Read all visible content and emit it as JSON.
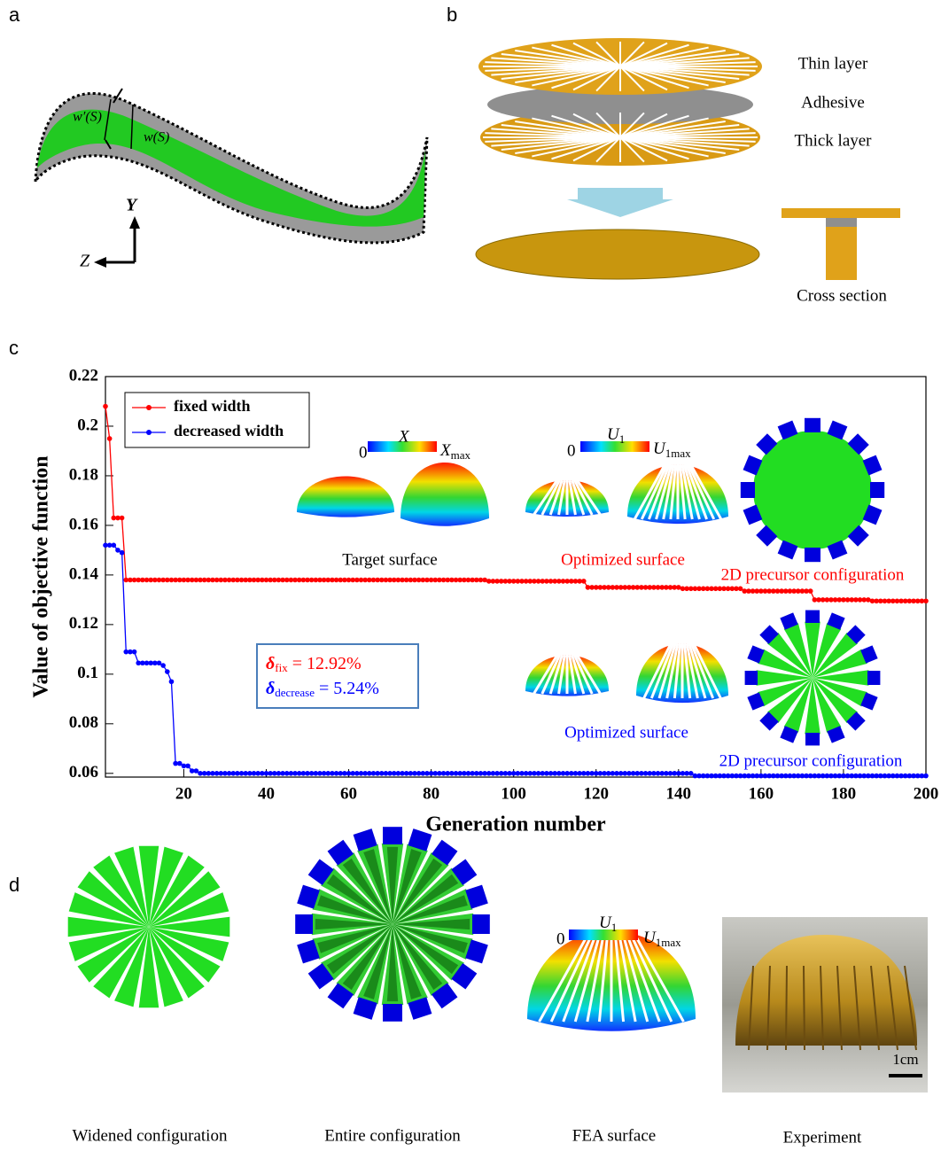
{
  "panel_labels": {
    "a": "a",
    "b": "b",
    "c": "c",
    "d": "d"
  },
  "panel_a": {
    "w_inner": "w′(S)",
    "w_outer": "w(S)",
    "axis_y": "Y",
    "axis_z": "Z"
  },
  "panel_b": {
    "thin": "Thin layer",
    "adhesive": "Adhesive",
    "thick": "Thick layer",
    "cross": "Cross section"
  },
  "panel_d": {
    "widened": "Widened configuration",
    "entire": "Entire configuration",
    "fea": "FEA surface",
    "experiment": "Experiment",
    "scale": "1cm",
    "colorbar": {
      "min": "0",
      "label": "U",
      "label_sub": "1",
      "max": "U",
      "max_sub": "1max"
    }
  },
  "chart_data": {
    "type": "line",
    "xlabel": "Generation number",
    "ylabel": "Value of objective function",
    "xlim": [
      1,
      200
    ],
    "ylim": [
      0.0585,
      0.22
    ],
    "xticks": [
      20,
      40,
      60,
      80,
      100,
      120,
      140,
      160,
      180,
      200
    ],
    "yticks": [
      0.06,
      0.08,
      0.1,
      0.12,
      0.14,
      0.16,
      0.18,
      0.2,
      0.22
    ],
    "legend": "upper left",
    "annotations": {
      "target": "Target surface",
      "opt_fixed": "Optimized surface",
      "pre_fixed": "2D precursor configuration",
      "opt_decreased": "Optimized surface",
      "pre_decreased": "2D precursor configuration",
      "cb_x": {
        "min": "0",
        "label": "X",
        "max": "X",
        "max_sub": "max"
      },
      "cb_u": {
        "min": "0",
        "label": "U",
        "label_sub": "1",
        "max": "U",
        "max_sub": "1max"
      },
      "delta_fix": {
        "sym": "δ",
        "sub": "fix",
        "rest": " = 12.92%"
      },
      "delta_dec": {
        "sym": "δ",
        "sub": "decrease",
        "rest": " = 5.24%"
      }
    },
    "x": [
      1,
      2,
      3,
      4,
      5,
      6,
      7,
      8,
      9,
      10,
      11,
      12,
      13,
      14,
      15,
      16,
      17,
      18,
      19,
      20,
      21,
      22,
      23,
      24,
      25,
      26,
      27,
      28,
      29,
      30,
      31,
      32,
      33,
      34,
      35,
      36,
      37,
      38,
      39,
      40,
      41,
      42,
      43,
      44,
      45,
      46,
      47,
      48,
      49,
      50,
      51,
      52,
      53,
      54,
      55,
      56,
      57,
      58,
      59,
      60,
      61,
      62,
      63,
      64,
      65,
      66,
      67,
      68,
      69,
      70,
      71,
      72,
      73,
      74,
      75,
      76,
      77,
      78,
      79,
      80,
      81,
      82,
      83,
      84,
      85,
      86,
      87,
      88,
      89,
      90,
      91,
      92,
      93,
      94,
      95,
      96,
      97,
      98,
      99,
      100,
      101,
      102,
      103,
      104,
      105,
      106,
      107,
      108,
      109,
      110,
      111,
      112,
      113,
      114,
      115,
      116,
      117,
      118,
      119,
      120,
      121,
      122,
      123,
      124,
      125,
      126,
      127,
      128,
      129,
      130,
      131,
      132,
      133,
      134,
      135,
      136,
      137,
      138,
      139,
      140,
      141,
      142,
      143,
      144,
      145,
      146,
      147,
      148,
      149,
      150,
      151,
      152,
      153,
      154,
      155,
      156,
      157,
      158,
      159,
      160,
      161,
      162,
      163,
      164,
      165,
      166,
      167,
      168,
      169,
      170,
      171,
      172,
      173,
      174,
      175,
      176,
      177,
      178,
      179,
      180,
      181,
      182,
      183,
      184,
      185,
      186,
      187,
      188,
      189,
      190,
      191,
      192,
      193,
      194,
      195,
      196,
      197,
      198,
      199,
      200
    ],
    "series": [
      {
        "name": "fixed width",
        "color": "#ff0000",
        "values": [
          0.208,
          0.195,
          0.163,
          0.163,
          0.163,
          0.138,
          0.138,
          0.138,
          0.138,
          0.138,
          0.138,
          0.138,
          0.138,
          0.138,
          0.138,
          0.138,
          0.138,
          0.138,
          0.138,
          0.138,
          0.138,
          0.138,
          0.138,
          0.138,
          0.138,
          0.138,
          0.138,
          0.138,
          0.138,
          0.138,
          0.138,
          0.138,
          0.138,
          0.138,
          0.138,
          0.138,
          0.138,
          0.138,
          0.138,
          0.138,
          0.138,
          0.138,
          0.138,
          0.138,
          0.138,
          0.138,
          0.138,
          0.138,
          0.138,
          0.138,
          0.138,
          0.138,
          0.138,
          0.138,
          0.138,
          0.138,
          0.138,
          0.138,
          0.138,
          0.138,
          0.138,
          0.138,
          0.138,
          0.138,
          0.138,
          0.138,
          0.138,
          0.138,
          0.138,
          0.138,
          0.138,
          0.138,
          0.138,
          0.138,
          0.138,
          0.138,
          0.138,
          0.138,
          0.138,
          0.138,
          0.138,
          0.138,
          0.138,
          0.138,
          0.138,
          0.138,
          0.138,
          0.138,
          0.138,
          0.138,
          0.138,
          0.138,
          0.138,
          0.1375,
          0.1375,
          0.1375,
          0.1375,
          0.1375,
          0.1375,
          0.1375,
          0.1375,
          0.1375,
          0.1375,
          0.1375,
          0.1375,
          0.1375,
          0.1375,
          0.1375,
          0.1375,
          0.1375,
          0.1375,
          0.1375,
          0.1375,
          0.1375,
          0.1375,
          0.1375,
          0.1375,
          0.135,
          0.135,
          0.135,
          0.135,
          0.135,
          0.135,
          0.135,
          0.135,
          0.135,
          0.135,
          0.135,
          0.135,
          0.135,
          0.135,
          0.135,
          0.135,
          0.135,
          0.135,
          0.135,
          0.135,
          0.135,
          0.135,
          0.135,
          0.1345,
          0.1345,
          0.1345,
          0.1345,
          0.1345,
          0.1345,
          0.1345,
          0.1345,
          0.1345,
          0.1345,
          0.1345,
          0.1345,
          0.1345,
          0.1345,
          0.1345,
          0.1335,
          0.1335,
          0.1335,
          0.1335,
          0.1335,
          0.1335,
          0.1335,
          0.1335,
          0.1335,
          0.1335,
          0.1335,
          0.1335,
          0.1335,
          0.1335,
          0.1335,
          0.1335,
          0.1335,
          0.13,
          0.13,
          0.13,
          0.13,
          0.13,
          0.13,
          0.13,
          0.13,
          0.13,
          0.13,
          0.13,
          0.13,
          0.13,
          0.13,
          0.1295,
          0.1295,
          0.1295,
          0.1295,
          0.1295,
          0.1295,
          0.1295,
          0.1295,
          0.1295,
          0.1295,
          0.1295,
          0.1295,
          0.1295,
          0.1295
        ]
      },
      {
        "name": "decreased width",
        "color": "#0000ff",
        "values": [
          0.152,
          0.152,
          0.152,
          0.15,
          0.149,
          0.109,
          0.109,
          0.109,
          0.1045,
          0.1045,
          0.1045,
          0.1045,
          0.1045,
          0.1045,
          0.1035,
          0.101,
          0.097,
          0.064,
          0.064,
          0.063,
          0.063,
          0.061,
          0.061,
          0.06,
          0.06,
          0.06,
          0.06,
          0.06,
          0.06,
          0.06,
          0.06,
          0.06,
          0.06,
          0.06,
          0.06,
          0.06,
          0.06,
          0.06,
          0.06,
          0.06,
          0.06,
          0.06,
          0.06,
          0.06,
          0.06,
          0.06,
          0.06,
          0.06,
          0.06,
          0.06,
          0.06,
          0.06,
          0.06,
          0.06,
          0.06,
          0.06,
          0.06,
          0.06,
          0.06,
          0.06,
          0.06,
          0.06,
          0.06,
          0.06,
          0.06,
          0.06,
          0.06,
          0.06,
          0.06,
          0.06,
          0.06,
          0.06,
          0.06,
          0.06,
          0.06,
          0.06,
          0.06,
          0.06,
          0.06,
          0.06,
          0.06,
          0.06,
          0.06,
          0.06,
          0.06,
          0.06,
          0.06,
          0.06,
          0.06,
          0.06,
          0.06,
          0.06,
          0.06,
          0.06,
          0.06,
          0.06,
          0.06,
          0.06,
          0.06,
          0.06,
          0.06,
          0.06,
          0.06,
          0.06,
          0.06,
          0.06,
          0.06,
          0.06,
          0.06,
          0.06,
          0.06,
          0.06,
          0.06,
          0.06,
          0.06,
          0.06,
          0.06,
          0.06,
          0.06,
          0.06,
          0.06,
          0.06,
          0.06,
          0.06,
          0.06,
          0.06,
          0.06,
          0.06,
          0.06,
          0.06,
          0.06,
          0.06,
          0.06,
          0.06,
          0.06,
          0.06,
          0.06,
          0.06,
          0.06,
          0.06,
          0.06,
          0.06,
          0.06,
          0.059,
          0.059,
          0.059,
          0.059,
          0.059,
          0.059,
          0.059,
          0.059,
          0.059,
          0.059,
          0.059,
          0.059,
          0.059,
          0.059,
          0.059,
          0.059,
          0.059,
          0.059,
          0.059,
          0.059,
          0.059,
          0.059,
          0.059,
          0.059,
          0.059,
          0.059,
          0.059,
          0.059,
          0.059,
          0.059,
          0.059,
          0.059,
          0.059,
          0.059,
          0.059,
          0.059,
          0.059,
          0.059,
          0.059,
          0.059,
          0.059,
          0.059,
          0.059,
          0.059,
          0.059,
          0.059,
          0.059,
          0.059,
          0.059,
          0.059,
          0.059,
          0.059,
          0.059,
          0.059,
          0.059,
          0.059,
          0.059
        ]
      }
    ]
  }
}
